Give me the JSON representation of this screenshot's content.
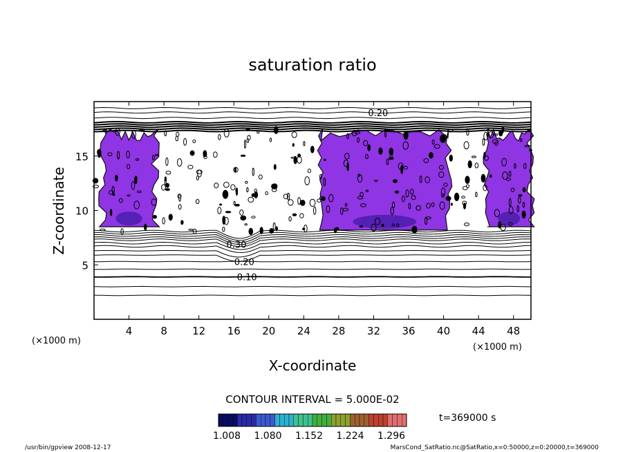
{
  "chart_data": {
    "type": "heatmap",
    "title": "saturation ratio",
    "xlabel": "X-coordinate",
    "ylabel": "Z-coordinate",
    "x_unit": "(×1000 m)",
    "z_unit": "(×1000 m)",
    "xlim": [
      0,
      50
    ],
    "ylim": [
      0,
      20
    ],
    "x_ticks": [
      "4",
      "8",
      "12",
      "16",
      "20",
      "24",
      "28",
      "32",
      "36",
      "40",
      "44",
      "48"
    ],
    "y_ticks": [
      "5",
      "10",
      "15"
    ],
    "contour_labels": [
      {
        "text": "0.20",
        "x": 32.5,
        "z": 19.0
      },
      {
        "text": "0.30",
        "x": 16.3,
        "z": 6.9
      },
      {
        "text": "0.20",
        "x": 17.2,
        "z": 5.3
      },
      {
        "text": "0.10",
        "x": 17.5,
        "z": 3.9
      }
    ],
    "contour_interval_text": "CONTOUR INTERVAL = 5.000E-02",
    "colorbar": {
      "min": 1.008,
      "max": 1.296,
      "tick_labels": [
        "1.008",
        "1.080",
        "1.152",
        "1.224",
        "1.296"
      ],
      "colors": [
        "#0a0a60",
        "#2a2aa8",
        "#3a5ad0",
        "#30b0d0",
        "#40c090",
        "#40b040",
        "#90a030",
        "#a06030",
        "#c04030",
        "#e07070"
      ]
    },
    "fill_color": "#8a2be2",
    "supersaturated_regions": [
      {
        "x": [
          1,
          7
        ],
        "z": [
          8.5,
          17.5
        ]
      },
      {
        "x": [
          26,
          40.5
        ],
        "z": [
          8.2,
          17.5
        ]
      },
      {
        "x": [
          45,
          50
        ],
        "z": [
          8.5,
          17.5
        ]
      }
    ],
    "time_text": "t=369000 s"
  },
  "footer": {
    "left": "/usr/bin/gpview   2008-12-17",
    "right": "MarsCond_SatRatio.nc@SatRatio,x=0:50000,z=0:20000,t=369000"
  }
}
